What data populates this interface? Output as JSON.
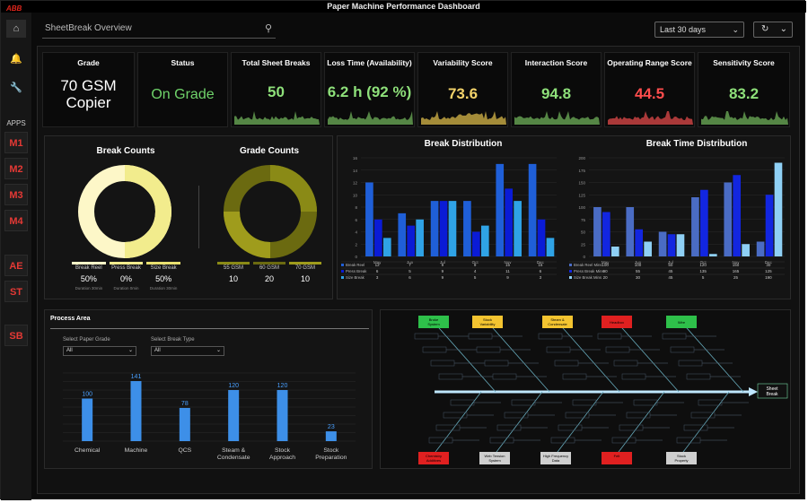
{
  "app": {
    "logo": "ABB",
    "title": "Paper Machine Performance Dashboard"
  },
  "sidebar": {
    "apps_label": "APPS",
    "items": [
      "M1",
      "M2",
      "M3",
      "M4",
      "AE",
      "ST",
      "SB"
    ],
    "icons": [
      "home-icon",
      "bell-icon",
      "wrench-icon"
    ]
  },
  "topbar": {
    "search_value": "SheetBreak Overview",
    "period": "Last 30 days"
  },
  "kpis": [
    {
      "label": "Grade",
      "value": "70 GSM Copier",
      "color": "#ffffff"
    },
    {
      "label": "Status",
      "value": "On Grade",
      "color": "#6fd36a"
    },
    {
      "label": "Total Sheet Breaks",
      "value": "50",
      "color": "#8ee07a"
    },
    {
      "label": "Loss Time (Availability)",
      "value": "6.2 h (92 %)",
      "color": "#8ee07a"
    },
    {
      "label": "Variability Score",
      "value": "73.6",
      "color": "#f3d36a"
    },
    {
      "label": "Interaction Score",
      "value": "94.8",
      "color": "#8ee07a"
    },
    {
      "label": "Operating Range Score",
      "value": "44.5",
      "color": "#ff4d4d"
    },
    {
      "label": "Sensitivity Score",
      "value": "83.2",
      "color": "#8ee07a"
    }
  ],
  "break_counts": {
    "title": "Break Counts",
    "labels": [
      "Break Reel",
      "Press Break",
      "Size Break"
    ],
    "values": [
      "50%",
      "0%",
      "50%"
    ],
    "durations": [
      "Duration 30min",
      "Duration 0min",
      "Duration 30min"
    ]
  },
  "grade_counts": {
    "title": "Grade Counts",
    "labels": [
      "55 GSM",
      "60 GSM",
      "70 GSM"
    ],
    "values": [
      "10",
      "20",
      "10"
    ]
  },
  "chart_data": [
    {
      "type": "bar",
      "title": "Break Distribution",
      "categories": [
        "May",
        "Jun",
        "Jul",
        "Oct",
        "Nov",
        "Dec"
      ],
      "ylim": [
        0,
        16
      ],
      "yticks": [
        "0",
        "2",
        "4",
        "6",
        "8",
        "10",
        "12",
        "14",
        "16"
      ],
      "series": [
        {
          "name": "Break Reel",
          "color": "#1f5fd8",
          "values": [
            12,
            7,
            9,
            9,
            15,
            15
          ]
        },
        {
          "name": "Press Break",
          "color": "#0a1bd6",
          "values": [
            6,
            5,
            9,
            4,
            11,
            6
          ]
        },
        {
          "name": "Size Break",
          "color": "#2fa3e6",
          "values": [
            3,
            6,
            9,
            5,
            9,
            3
          ]
        }
      ]
    },
    {
      "type": "bar",
      "title": "Break Time Distribution",
      "categories": [
        "May",
        "Jun",
        "Jul",
        "Oct",
        "Nov",
        "Dec"
      ],
      "ylim": [
        0,
        200
      ],
      "yticks": [
        "0",
        "25",
        "50",
        "75",
        "100",
        "125",
        "150",
        "175",
        "200"
      ],
      "series": [
        {
          "name": "Break Reel Mins",
          "color": "#4a6cc4",
          "values": [
            100,
            100,
            50,
            120,
            150,
            30
          ]
        },
        {
          "name": "Press Break Mins",
          "color": "#1226e0",
          "values": [
            90,
            55,
            45,
            135,
            165,
            125
          ]
        },
        {
          "name": "Size Break Mins",
          "color": "#8fd0f5",
          "values": [
            20,
            30,
            45,
            5,
            25,
            190
          ]
        }
      ]
    },
    {
      "type": "bar",
      "title": "Process Area",
      "categories": [
        "Chemical",
        "Machine",
        "QCS",
        "Steam & Condensate",
        "Stock Approach",
        "Stock Preparation"
      ],
      "values": [
        100,
        141,
        78,
        120,
        120,
        23
      ],
      "ylim": [
        0,
        160
      ]
    }
  ],
  "break_table_values": {
    "rows": [
      [
        "12",
        "7",
        "9",
        "9",
        "15",
        "15"
      ],
      [
        "6",
        "5",
        "9",
        "4",
        "11",
        "6"
      ],
      [
        "3",
        "6",
        "9",
        "5",
        "9",
        "3"
      ]
    ]
  },
  "break_time_table_values": {
    "rows": [
      [
        "100",
        "100",
        "50",
        "120",
        "150",
        "30"
      ],
      [
        "90",
        "55",
        "45",
        "135",
        "165",
        "125"
      ],
      [
        "20",
        "30",
        "45",
        "5",
        "25",
        "190"
      ]
    ]
  },
  "process": {
    "title": "Process Area",
    "filter1_label": "Select Paper Grade",
    "filter1_value": "All",
    "filter2_label": "Select Break Type",
    "filter2_value": "All"
  },
  "fishbone": {
    "head": "Sheet Break",
    "top": [
      "Broke System",
      "Stock Variability",
      "Steam & Condensate",
      "Headbox",
      "Wire"
    ],
    "top_colors": [
      "#2ec04a",
      "#f4c430",
      "#f4c430",
      "#e02020",
      "#2ec04a"
    ],
    "bottom": [
      "Chemistry Additives",
      "Web Tension System",
      "High Frequency Data",
      "Felt",
      "Stock Property"
    ],
    "bottom_colors": [
      "#e02020",
      "#cfcfcf",
      "#cfcfcf",
      "#e02020",
      "#cfcfcf"
    ]
  }
}
